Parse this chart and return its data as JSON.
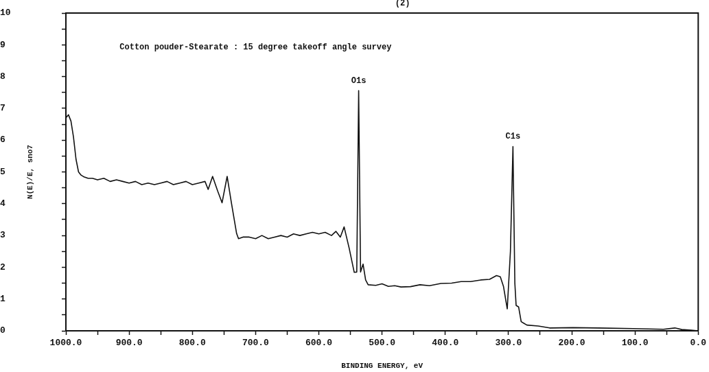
{
  "chart_data": {
    "type": "line",
    "title": "(2)",
    "xlabel": "BINDING ENERGY, eV",
    "ylabel": "N(E)/E, sno7",
    "annotations": [
      "Cotton pouder-Stearate : 15 degree takeoff angle survey",
      {
        "text": "O1s",
        "x": 537,
        "y": 7.56
      },
      {
        "text": "C1s",
        "x": 293,
        "y": 5.8
      }
    ],
    "series": [
      {
        "color": "#111111",
        "x": [
          1000,
          996,
          992,
          988,
          984,
          980,
          976,
          972,
          965,
          958,
          950,
          940,
          930,
          920,
          910,
          900,
          890,
          880,
          870,
          860,
          850,
          840,
          830,
          820,
          810,
          800,
          790,
          780,
          775,
          768,
          760,
          753,
          745,
          738,
          730,
          727,
          720,
          710,
          700,
          690,
          680,
          670,
          660,
          650,
          640,
          630,
          620,
          610,
          600,
          590,
          580,
          573,
          566,
          560,
          552,
          544,
          540,
          537,
          534,
          530,
          526,
          522,
          510,
          500,
          490,
          480,
          470,
          455,
          440,
          425,
          407,
          390,
          375,
          360,
          344,
          330,
          319,
          313,
          308,
          302,
          297,
          293,
          290,
          288,
          284,
          280,
          271,
          253,
          235,
          198,
          158,
          103,
          55,
          37,
          26,
          11,
          0
        ],
        "values": [
          6.7,
          6.8,
          6.6,
          6.1,
          5.4,
          5.0,
          4.9,
          4.85,
          4.8,
          4.8,
          4.75,
          4.8,
          4.7,
          4.75,
          4.7,
          4.65,
          4.7,
          4.6,
          4.65,
          4.6,
          4.65,
          4.7,
          4.6,
          4.65,
          4.7,
          4.6,
          4.65,
          4.7,
          4.45,
          4.86,
          4.4,
          4.03,
          4.86,
          4.0,
          3.06,
          2.9,
          2.95,
          2.95,
          2.9,
          3.0,
          2.9,
          2.95,
          3.0,
          2.95,
          3.05,
          3.0,
          3.05,
          3.1,
          3.05,
          3.1,
          3.0,
          3.13,
          2.95,
          3.27,
          2.6,
          1.84,
          1.85,
          7.56,
          1.85,
          2.1,
          1.6,
          1.45,
          1.43,
          1.48,
          1.4,
          1.42,
          1.38,
          1.39,
          1.45,
          1.42,
          1.49,
          1.5,
          1.55,
          1.55,
          1.6,
          1.62,
          1.74,
          1.7,
          1.4,
          0.69,
          2.5,
          5.8,
          1.5,
          0.8,
          0.75,
          0.29,
          0.18,
          0.15,
          0.09,
          0.1,
          0.09,
          0.07,
          0.05,
          0.09,
          0.04,
          0.02,
          0
        ]
      }
    ],
    "xlim": [
      1000,
      0
    ],
    "xticks": [
      {
        "value": 1000,
        "label": "1000.0"
      },
      {
        "value": 950,
        "label": null
      },
      {
        "value": 900,
        "label": "900.0"
      },
      {
        "value": 850,
        "label": null
      },
      {
        "value": 800,
        "label": "800.0"
      },
      {
        "value": 750,
        "label": null
      },
      {
        "value": 700,
        "label": "700.0"
      },
      {
        "value": 650,
        "label": null
      },
      {
        "value": 600,
        "label": "600.0"
      },
      {
        "value": 550,
        "label": null
      },
      {
        "value": 500,
        "label": "500.0"
      },
      {
        "value": 450,
        "label": null
      },
      {
        "value": 400,
        "label": "400.0"
      },
      {
        "value": 350,
        "label": null
      },
      {
        "value": 300,
        "label": "300.0"
      },
      {
        "value": 250,
        "label": null
      },
      {
        "value": 200,
        "label": "200.0"
      },
      {
        "value": 150,
        "label": null
      },
      {
        "value": 100,
        "label": "100.0"
      },
      {
        "value": 50,
        "label": null
      },
      {
        "value": 0,
        "label": "0.0"
      }
    ],
    "ylim": [
      0,
      10
    ],
    "yticks": [
      0,
      {
        "value": 0.5,
        "label": null
      },
      1,
      {
        "value": 1.5,
        "label": null
      },
      2,
      {
        "value": 2.5,
        "label": null
      },
      3,
      {
        "value": 3.5,
        "label": null
      },
      4,
      {
        "value": 4.5,
        "label": null
      },
      5,
      {
        "value": 5.5,
        "label": null
      },
      6,
      {
        "value": 6.5,
        "label": null
      },
      7,
      {
        "value": 7.5,
        "label": null
      },
      8,
      {
        "value": 8.5,
        "label": null
      },
      9,
      {
        "value": 9.5,
        "label": null
      },
      10
    ],
    "grid": false,
    "legend": false,
    "marker": "none",
    "line_style": "solid"
  }
}
